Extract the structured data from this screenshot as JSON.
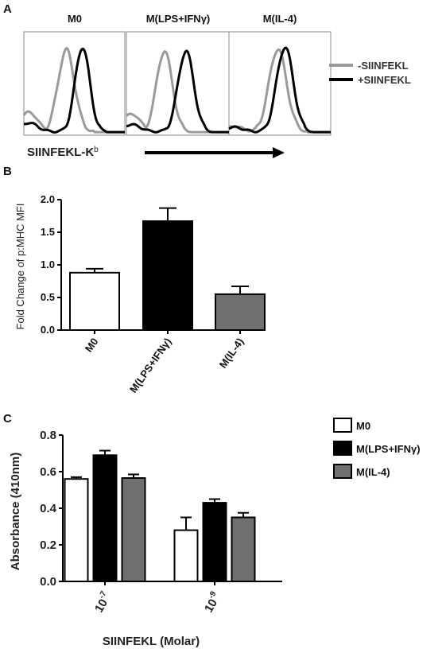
{
  "chart_data": [
    {
      "panel": "A",
      "type": "line",
      "panel_titles": [
        "M0",
        "M(LPS+IFNγ)",
        "M(IL-4)"
      ],
      "xlabel": "SIINFEKL-K",
      "xlabel_sup": "b",
      "series": [
        {
          "name": "-SIINFEKL",
          "color": "#9a9a9a",
          "panels": [
            {
              "center": 0.42,
              "width": 0.17,
              "height": 0.83,
              "base": 0.22
            },
            {
              "center": 0.37,
              "width": 0.16,
              "height": 0.82,
              "base": 0.2
            },
            {
              "center": 0.48,
              "width": 0.18,
              "height": 0.84,
              "base": 0.06
            }
          ]
        },
        {
          "name": "+SIINFEKL",
          "color": "#000000",
          "panels": [
            {
              "center": 0.58,
              "width": 0.15,
              "height": 0.86,
              "base": 0.1
            },
            {
              "center": 0.58,
              "width": 0.16,
              "height": 0.82,
              "base": 0.08
            },
            {
              "center": 0.55,
              "width": 0.17,
              "height": 0.86,
              "base": 0.05
            }
          ]
        }
      ]
    },
    {
      "panel": "B",
      "type": "bar",
      "categories": [
        "M0",
        "M(LPS+IFNγ)",
        "M(IL-4)"
      ],
      "values": [
        0.88,
        1.67,
        0.55
      ],
      "errors": [
        0.06,
        0.2,
        0.12
      ],
      "colors": [
        "#ffffff",
        "#000000",
        "#707070"
      ],
      "ylabel": "Fold Change of p:MHC MFI",
      "ylim": [
        0,
        2.0
      ],
      "yticks": [
        "0.0",
        "0.5",
        "1.0",
        "1.5",
        "2.0"
      ],
      "ytick_values": [
        0,
        0.5,
        1.0,
        1.5,
        2.0
      ]
    },
    {
      "panel": "C",
      "type": "bar",
      "categories": [
        "10",
        "10"
      ],
      "category_exponents": [
        "-7",
        "-9"
      ],
      "series": [
        {
          "name": "M0",
          "color": "#ffffff",
          "values": [
            0.56,
            0.28
          ],
          "errors": [
            0.01,
            0.07
          ]
        },
        {
          "name": "M(LPS+IFNγ)",
          "color": "#000000",
          "values": [
            0.69,
            0.43
          ],
          "errors": [
            0.025,
            0.02
          ]
        },
        {
          "name": "M(IL-4)",
          "color": "#707070",
          "values": [
            0.565,
            0.35
          ],
          "errors": [
            0.02,
            0.025
          ]
        }
      ],
      "ylabel": "Absorbance (410nm)",
      "xlabel": "SIINFEKL (Molar)",
      "ylim": [
        0,
        0.8
      ],
      "yticks": [
        "0.0",
        "0.2",
        "0.4",
        "0.6",
        "0.8"
      ],
      "ytick_values": [
        0,
        0.2,
        0.4,
        0.6,
        0.8
      ],
      "legend": "right"
    }
  ]
}
